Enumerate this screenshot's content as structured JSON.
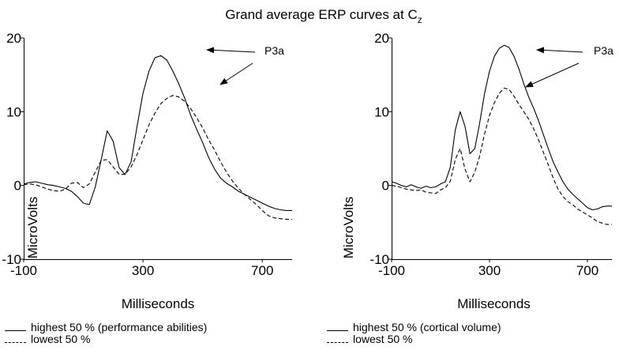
{
  "title": {
    "main": "Grand average ERP curves at C",
    "sub": "z"
  },
  "annotation_label": "P3a",
  "chart_data": [
    {
      "type": "line",
      "xlabel": "Milliseconds",
      "ylabel": "MicroVolts",
      "xlim": [
        -100,
        800
      ],
      "ylim": [
        -10,
        20
      ],
      "xticks": [
        -100,
        300,
        700
      ],
      "yticks": [
        -10,
        0,
        10,
        20
      ],
      "grid": false,
      "legend_position": "bottom",
      "series": [
        {
          "name": "highest 50 % (performance abilities)",
          "style": "solid",
          "x": [
            -100,
            -80,
            -60,
            -40,
            -20,
            0,
            20,
            40,
            60,
            80,
            100,
            120,
            140,
            160,
            180,
            200,
            220,
            240,
            260,
            280,
            300,
            320,
            340,
            360,
            380,
            400,
            420,
            440,
            460,
            480,
            500,
            520,
            540,
            560,
            580,
            600,
            620,
            640,
            660,
            680,
            700,
            720,
            740,
            760,
            780,
            800
          ],
          "y": [
            0.2,
            0.4,
            0.5,
            0.3,
            0.1,
            0,
            -0.2,
            -0.4,
            -0.8,
            -1.5,
            -2.4,
            -2.6,
            -0.2,
            3.5,
            7.4,
            6,
            2.4,
            1.5,
            3.2,
            8,
            12.5,
            15.5,
            17.3,
            17.6,
            17,
            15.5,
            13.8,
            11.8,
            9.5,
            7.6,
            5.8,
            3.8,
            2.2,
            1,
            0.3,
            -0.2,
            -0.8,
            -1.2,
            -1.6,
            -2,
            -2.4,
            -2.8,
            -3.1,
            -3.3,
            -3.4,
            -3.4
          ]
        },
        {
          "name": "lowest 50 %",
          "style": "dashed",
          "x": [
            -100,
            -80,
            -60,
            -40,
            -20,
            0,
            20,
            40,
            60,
            80,
            100,
            120,
            140,
            160,
            180,
            200,
            220,
            240,
            260,
            280,
            300,
            320,
            340,
            360,
            380,
            400,
            420,
            440,
            460,
            480,
            500,
            520,
            540,
            560,
            580,
            600,
            620,
            640,
            660,
            680,
            700,
            720,
            740,
            760,
            780,
            800
          ],
          "y": [
            0.1,
            0.2,
            0.1,
            -0.2,
            -0.5,
            -0.7,
            -0.8,
            -0.5,
            0.3,
            0.4,
            -0.3,
            0.2,
            1.8,
            3.4,
            3.5,
            2.5,
            1.5,
            1.5,
            2.5,
            4.2,
            6.2,
            8.2,
            9.8,
            11.1,
            11.8,
            12.2,
            12,
            11.4,
            10.4,
            9.2,
            7.8,
            6.2,
            4.8,
            3.2,
            1.8,
            0.6,
            -0.4,
            -1.2,
            -1.9,
            -2.6,
            -3.4,
            -4.1,
            -4.4,
            -4.5,
            -4.6,
            -4.6
          ]
        }
      ]
    },
    {
      "type": "line",
      "xlabel": "Milliseconds",
      "ylabel": "MicroVolts",
      "xlim": [
        -100,
        800
      ],
      "ylim": [
        -10,
        20
      ],
      "xticks": [
        -100,
        300,
        700
      ],
      "yticks": [
        -10,
        0,
        10,
        20
      ],
      "grid": false,
      "legend_position": "bottom",
      "series": [
        {
          "name": "highest 50 % (cortical volume)",
          "style": "solid",
          "x": [
            -100,
            -80,
            -60,
            -40,
            -20,
            0,
            20,
            40,
            60,
            80,
            100,
            120,
            140,
            160,
            180,
            200,
            220,
            240,
            260,
            280,
            300,
            320,
            340,
            360,
            380,
            400,
            420,
            440,
            460,
            480,
            500,
            520,
            540,
            560,
            580,
            600,
            620,
            640,
            660,
            680,
            700,
            720,
            740,
            760,
            780,
            800
          ],
          "y": [
            0.5,
            0.3,
            0,
            -0.2,
            0.1,
            -0.2,
            -0.4,
            -0.1,
            -0.3,
            -0.2,
            0.2,
            0.5,
            2.5,
            7.5,
            10,
            8,
            4.3,
            5,
            8.5,
            12.5,
            15.5,
            17.5,
            18.6,
            19,
            18.7,
            17.5,
            15.8,
            13.8,
            12,
            10.5,
            8.8,
            6.9,
            5,
            3.2,
            1.8,
            0.5,
            -0.5,
            -1.2,
            -1.8,
            -2.4,
            -3,
            -3.3,
            -3.2,
            -2.9,
            -2.8,
            -2.8
          ]
        },
        {
          "name": "lowest 50 %",
          "style": "dashed",
          "x": [
            -100,
            -80,
            -60,
            -40,
            -20,
            0,
            20,
            40,
            60,
            80,
            100,
            120,
            140,
            160,
            180,
            200,
            220,
            240,
            260,
            280,
            300,
            320,
            340,
            360,
            380,
            400,
            420,
            440,
            460,
            480,
            500,
            520,
            540,
            560,
            580,
            600,
            620,
            640,
            660,
            680,
            700,
            720,
            740,
            760,
            780,
            800
          ],
          "y": [
            0,
            -0.1,
            -0.3,
            -0.5,
            -0.6,
            -0.7,
            -0.6,
            -0.9,
            -1,
            -1.1,
            -0.6,
            -0.3,
            0.6,
            3.5,
            5,
            2.2,
            0.5,
            1.8,
            4,
            7,
            9.5,
            11.2,
            12.5,
            13.2,
            13,
            12.1,
            11,
            10,
            9,
            7.7,
            6.2,
            4.5,
            2.8,
            1,
            -0.5,
            -1.5,
            -2.2,
            -2.6,
            -3.2,
            -3.6,
            -4,
            -4.4,
            -4.9,
            -5.1,
            -5.3,
            -5.3
          ]
        }
      ]
    }
  ]
}
